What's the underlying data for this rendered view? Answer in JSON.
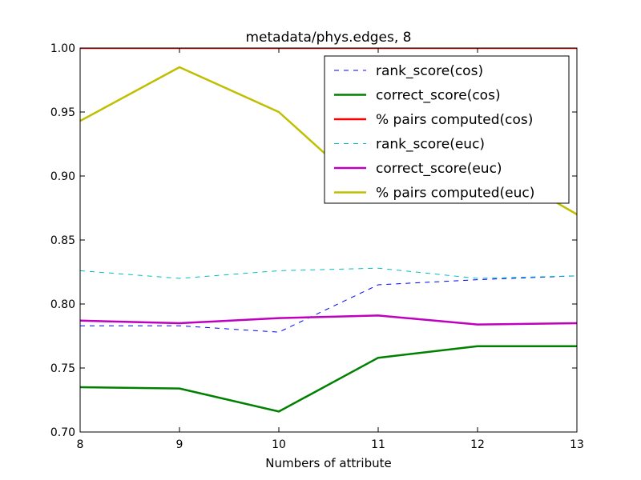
{
  "chart_data": {
    "type": "line",
    "title": "metadata/phys.edges, 8",
    "xlabel": "Numbers of attribute",
    "ylabel": "",
    "x": [
      8,
      9,
      10,
      11,
      12,
      13
    ],
    "xlim": [
      8,
      13
    ],
    "ylim": [
      0.7,
      1.0
    ],
    "xticks": [
      "8",
      "9",
      "10",
      "11",
      "12",
      "13"
    ],
    "yticks": [
      "0.70",
      "0.75",
      "0.80",
      "0.85",
      "0.90",
      "0.95",
      "1.00"
    ],
    "grid": false,
    "legend_position": "top-right",
    "series": [
      {
        "name": "rank_score(cos)",
        "values": [
          0.783,
          0.783,
          0.778,
          0.815,
          0.819,
          0.822
        ],
        "color": "#0000ff",
        "style": "dashed",
        "width": "thin"
      },
      {
        "name": "correct_score(cos)",
        "values": [
          0.735,
          0.734,
          0.716,
          0.758,
          0.767,
          0.767
        ],
        "color": "#008000",
        "style": "solid",
        "width": "thick"
      },
      {
        "name": "% pairs computed(cos)",
        "values": [
          1.0,
          1.0,
          1.0,
          1.0,
          1.0,
          1.0
        ],
        "color": "#ff0000",
        "style": "solid",
        "width": "thick"
      },
      {
        "name": "rank_score(euc)",
        "values": [
          0.826,
          0.82,
          0.826,
          0.828,
          0.82,
          0.822
        ],
        "color": "#00bfbf",
        "style": "dashed",
        "width": "thin"
      },
      {
        "name": "correct_score(euc)",
        "values": [
          0.787,
          0.785,
          0.789,
          0.791,
          0.784,
          0.785
        ],
        "color": "#bf00bf",
        "style": "solid",
        "width": "thick"
      },
      {
        "name": "% pairs computed(euc)",
        "values": [
          0.943,
          0.985,
          0.95,
          0.88,
          0.915,
          0.87
        ],
        "color": "#bfbf00",
        "style": "solid",
        "width": "thick"
      }
    ]
  }
}
